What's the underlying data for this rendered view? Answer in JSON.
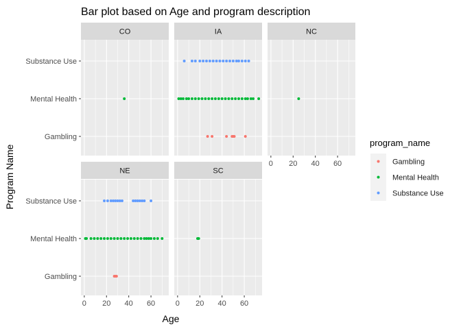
{
  "chart_data": {
    "type": "scatter",
    "title": "Bar plot based on Age and program description",
    "xlabel": "Age",
    "ylabel": "Program Name",
    "categories": [
      "Gambling",
      "Mental Health",
      "Substance Use"
    ],
    "x_ticks": [
      0,
      20,
      40,
      60
    ],
    "xlim": [
      -3,
      76
    ],
    "grid": true,
    "legend": {
      "title": "program_name",
      "position": "right",
      "entries": [
        "Gambling",
        "Mental Health",
        "Substance Use"
      ]
    },
    "colors": {
      "Gambling": "#F8766D",
      "Mental Health": "#00BA38",
      "Substance Use": "#619CFF",
      "panel_bg": "#EBEBEB",
      "strip_bg": "#D9D9D9"
    },
    "facets": [
      {
        "label": "CO",
        "series": [
          {
            "name": "Mental Health",
            "x": [
              36
            ]
          }
        ]
      },
      {
        "label": "IA",
        "series": [
          {
            "name": "Gambling",
            "x": [
              27,
              31,
              44,
              49,
              50,
              51,
              61
            ]
          },
          {
            "name": "Mental Health",
            "x": [
              1,
              3,
              5,
              8,
              10,
              13,
              16,
              19,
              22,
              25,
              28,
              31,
              34,
              37,
              40,
              43,
              46,
              49,
              52,
              55,
              58,
              61,
              63,
              66,
              68,
              73
            ]
          },
          {
            "name": "Substance Use",
            "x": [
              6,
              13,
              16,
              20,
              23,
              26,
              29,
              32,
              35,
              38,
              41,
              44,
              47,
              50,
              53,
              55,
              58,
              61,
              64
            ]
          }
        ]
      },
      {
        "label": "NC",
        "series": [
          {
            "name": "Mental Health",
            "x": [
              25
            ]
          }
        ]
      },
      {
        "label": "NE",
        "series": [
          {
            "name": "Gambling",
            "x": [
              27,
              28,
              29
            ]
          },
          {
            "name": "Mental Health",
            "x": [
              1,
              2,
              6,
              9,
              12,
              15,
              18,
              21,
              24,
              27,
              30,
              33,
              36,
              39,
              42,
              45,
              48,
              51,
              54,
              56,
              58,
              60,
              63,
              66,
              70
            ]
          },
          {
            "name": "Substance Use",
            "x": [
              18,
              21,
              24,
              26,
              28,
              30,
              32,
              34,
              44,
              46,
              48,
              50,
              52,
              54,
              60
            ]
          }
        ]
      },
      {
        "label": "SC",
        "series": [
          {
            "name": "Mental Health",
            "x": [
              18,
              19
            ]
          }
        ]
      }
    ]
  }
}
